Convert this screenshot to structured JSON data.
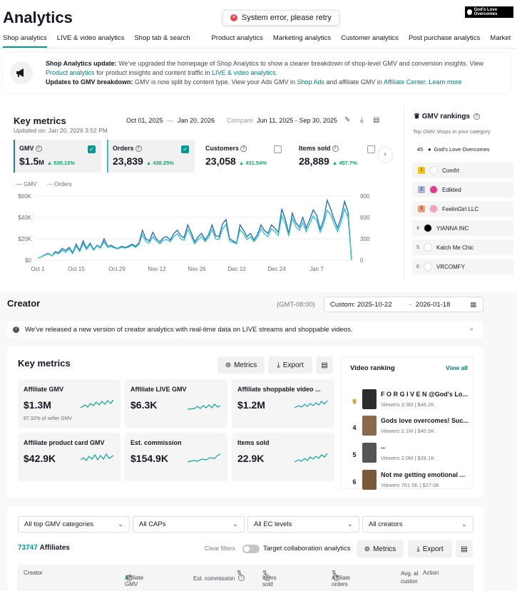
{
  "header": {
    "title": "Analytics",
    "error_toast": "System error, please retry",
    "brand": "God's Love Overcomes"
  },
  "tabs": [
    "Shop analytics",
    "LIVE & video analytics",
    "Shop tab & search",
    "Product analytics",
    "Marketing analytics",
    "Customer analytics",
    "Post purchase analytics",
    "Market"
  ],
  "banner": {
    "heading1": "Shop Analytics update:",
    "text1a": "We've upgraded the homepage of Shop Analytics to show a clearer breakdown of shop-level GMV and conversion insights. View",
    "link1": "Product analytics",
    "text1b": "for product insights and content traffic in",
    "link2": "LIVE & video analytics",
    "heading2": "Updates to GMV breakdown:",
    "text2": "GMV is now split by content type. View your Ads GMV in",
    "link3": "Shop Ads",
    "text3": "and affiliate GMV in",
    "link4": "Affiliate Center",
    "link5": "Learn more"
  },
  "key_metrics": {
    "title": "Key metrics",
    "updated": "Updated on: Jan 20, 2026 3:52 PM",
    "date_start": "Oct 01, 2025",
    "date_sep": "—",
    "date_end": "Jan 20, 2026",
    "compare_label": "Compare",
    "compare_range": "Jun 11, 2025 - Sep 30, 2025",
    "metrics": [
      {
        "label": "GMV",
        "value": "$1.5",
        "unit": "M",
        "change": "▲ 530.13%",
        "checked": true
      },
      {
        "label": "Orders",
        "value": "23,839",
        "unit": "",
        "change": "▲ 438.25%",
        "checked": true
      },
      {
        "label": "Customers",
        "value": "23,058",
        "unit": "",
        "change": "▲ 431.54%",
        "checked": false
      },
      {
        "label": "Items sold",
        "value": "28,889",
        "unit": "",
        "change": "▲ 457.7%",
        "checked": false
      }
    ],
    "legend": [
      "GMV",
      "Orders"
    ]
  },
  "chart_data": {
    "type": "line",
    "x_ticks": [
      "Oct 1",
      "Oct 15",
      "Oct 29",
      "Nov 12",
      "Nov 26",
      "Dec 10",
      "Dec 24",
      "Jan 7"
    ],
    "y_left_ticks": [
      "$60K",
      "$40K",
      "$20K",
      "$0"
    ],
    "y_right_ticks": [
      "900",
      "600",
      "300",
      "0"
    ],
    "ylim_left": [
      0,
      60000
    ],
    "ylim_right": [
      0,
      900
    ],
    "series": [
      {
        "name": "GMV",
        "axis": "left",
        "color": "#2a6fbf",
        "values": [
          2000,
          3000,
          5000,
          6500,
          4000,
          8000,
          7000,
          11000,
          9000,
          12000,
          7000,
          15000,
          9000,
          18000,
          11000,
          16000,
          10000,
          14000,
          12000,
          20000,
          13000,
          14000,
          12000,
          11000,
          13000,
          12000,
          13000,
          15000,
          13000,
          16000,
          28000,
          20000,
          18000,
          26000,
          20000,
          17000,
          21000,
          22000,
          19000,
          25000,
          28000,
          23000,
          21000,
          33000,
          26000,
          17000,
          22000,
          25000,
          19000,
          24000,
          33000,
          23000,
          22000,
          34000,
          38000,
          20000,
          18000,
          16000,
          33000,
          28000,
          22000,
          25000,
          19000,
          24000,
          33000,
          28000,
          25000,
          33000,
          30000,
          26000,
          48000,
          38000,
          25000,
          44000,
          35000,
          31000,
          40000,
          30000,
          38000,
          47000,
          42000,
          29000,
          38000,
          56000,
          48000,
          38000,
          30000,
          40000,
          55000,
          45000,
          0
        ]
      },
      {
        "name": "Orders",
        "axis": "right",
        "color": "#39c4c2",
        "values": [
          30,
          45,
          70,
          90,
          60,
          100,
          90,
          140,
          110,
          160,
          90,
          200,
          120,
          230,
          150,
          220,
          140,
          200,
          170,
          260,
          180,
          190,
          170,
          160,
          180,
          170,
          180,
          210,
          180,
          220,
          360,
          260,
          240,
          330,
          270,
          230,
          280,
          290,
          260,
          330,
          370,
          300,
          280,
          430,
          340,
          230,
          290,
          330,
          260,
          320,
          430,
          300,
          290,
          440,
          500,
          270,
          250,
          230,
          430,
          370,
          290,
          330,
          260,
          320,
          440,
          370,
          330,
          440,
          400,
          350,
          620,
          510,
          340,
          590,
          470,
          420,
          530,
          400,
          510,
          620,
          560,
          390,
          510,
          700,
          640,
          510,
          400,
          530,
          720,
          600,
          0
        ]
      }
    ]
  },
  "gmv_rankings": {
    "title": "GMV rankings",
    "subtitle": "Top GMV shops in your category",
    "own": {
      "rank": "45",
      "name": "God's Love Overcomes"
    },
    "rows": [
      {
        "rank": "1",
        "name": "Comfrt",
        "badge_color": "#f5c518"
      },
      {
        "rank": "2",
        "name": "Edikted",
        "badge_color": "#aab8d6"
      },
      {
        "rank": "3",
        "name": "FeelinGirl LLC",
        "badge_color": "#e8a37a"
      },
      {
        "rank": "4",
        "name": "YIANNA INC",
        "badge_color": ""
      },
      {
        "rank": "5",
        "name": "Katch Me Chic",
        "badge_color": ""
      },
      {
        "rank": "6",
        "name": "VRCOMFY",
        "badge_color": ""
      }
    ]
  },
  "creator": {
    "title": "Creator",
    "timezone": "(GMT-08:00)",
    "custom_start": "Custom: 2025-10-22",
    "custom_sep": "-",
    "custom_end": "2026-01-18",
    "notice": "We've released a new version of creator analytics with real-time data on LIVE streams and shoppable videos.",
    "km_title": "Key metrics",
    "metrics_btn": "Metrics",
    "export_btn": "Export",
    "tiles": [
      {
        "label": "Affiliate GMV",
        "value": "$1.3M",
        "sub": "87.32% of seller GMV"
      },
      {
        "label": "Affiliate LIVE GMV",
        "value": "$6.3K",
        "sub": ""
      },
      {
        "label": "Affiliate shoppable video ...",
        "value": "$1.2M",
        "sub": ""
      },
      {
        "label": "Affiliate product card GMV",
        "value": "$42.9K",
        "sub": ""
      },
      {
        "label": "Est. commission",
        "value": "$154.9K",
        "sub": ""
      },
      {
        "label": "Items sold",
        "value": "22.9K",
        "sub": ""
      }
    ],
    "video_ranking": {
      "title": "Video ranking",
      "view_all": "View all",
      "items": [
        {
          "rank": "♛",
          "title": "F O R G I V E N @God's Lo...",
          "viewers": "Viewers 3.3M",
          "gmv": "$46.2K"
        },
        {
          "rank": "4",
          "title": "Gods love overcomes! Suc...",
          "viewers": "Viewers 2.1M",
          "gmv": "$40.5K"
        },
        {
          "rank": "5",
          "title": "--",
          "viewers": "Viewers 2.0M",
          "gmv": "$28.1K"
        },
        {
          "rank": "6",
          "title": "Not me getting emotional ...",
          "viewers": "Viewers 761.5K",
          "gmv": "$27.0K"
        }
      ]
    },
    "filters": [
      "All top GMV categories",
      "All CAPs",
      "All EC levels",
      "All creators"
    ],
    "affiliates_count": "73747",
    "affiliates_label": "Affiliates",
    "clear_filters": "Clear filters",
    "target_toggle": "Target collaboration analytics",
    "columns": [
      "Creator",
      "Affiliate GMV",
      "Est. commission",
      "Items sold",
      "Affiliate orders",
      "Avg. al custon",
      "Action"
    ]
  }
}
